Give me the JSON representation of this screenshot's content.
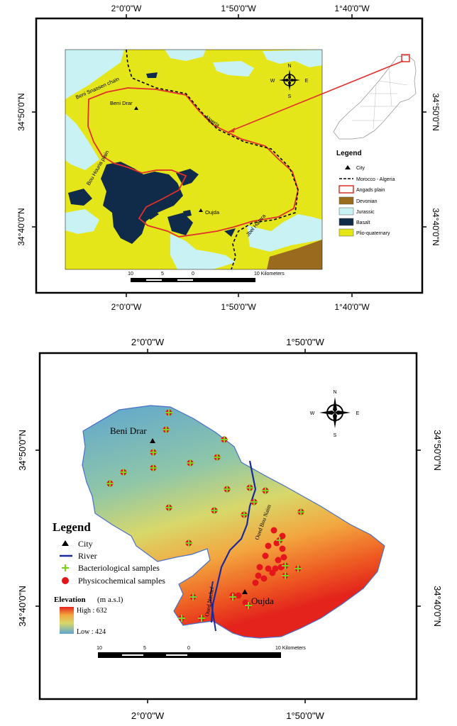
{
  "map1": {
    "top_ticks": [
      "2°0'0\"W",
      "1°50'0\"W",
      "1°40'0\"W"
    ],
    "bottom_ticks": [
      "2°0'0\"W",
      "1°50'0\"W",
      "1°40'0\"W"
    ],
    "left_ticks": [
      "34°50'0\"N",
      "34°40'0\"N"
    ],
    "right_ticks": [
      "34°50'0\"N",
      "34°40'0\"N"
    ],
    "labels": {
      "beni_snassen": "Beni Snassen chain",
      "beni_drar": "Beni Drar",
      "algeria": "Algeria",
      "bou_houria": "Bou Houria plain",
      "oujda": "Oujda",
      "jbel_hamra": "Jbel Hamra"
    },
    "legend": {
      "title": "Legend",
      "items": [
        {
          "label": "City",
          "symbol": "triangle"
        },
        {
          "label": "Morocco - Algeria",
          "symbol": "dashed-line"
        },
        {
          "label": "Angads plain",
          "symbol": "red-outline",
          "color": "#e0302b"
        },
        {
          "label": "Devonian",
          "symbol": "fill",
          "color": "#9a6a1e"
        },
        {
          "label": "Jurassic",
          "symbol": "fill",
          "color": "#c9f2f4"
        },
        {
          "label": "Basalt",
          "symbol": "fill",
          "color": "#102a4a"
        },
        {
          "label": "Plio-quaternary",
          "symbol": "fill",
          "color": "#e5e619"
        }
      ]
    },
    "compass": {
      "n": "N",
      "s": "S",
      "e": "E",
      "w": "W"
    },
    "scale": [
      "10",
      "5",
      "0",
      "10 Kilometers"
    ]
  },
  "map2": {
    "top_ticks": [
      "2°0'0\"W",
      "1°50'0\"W"
    ],
    "bottom_ticks": [
      "2°0'0\"W",
      "1°50'0\"W"
    ],
    "left_ticks": [
      "34°50'0\"N",
      "34°40'0\"N"
    ],
    "right_ticks": [
      "34°50'0\"N",
      "34°40'0\"N"
    ],
    "labels": {
      "beni_drar": "Beni Drar",
      "oujda": "Oujda",
      "oued_bou_naim": "Oued Bou Naim",
      "oued_nachef": "Oued Nachef"
    },
    "legend": {
      "title": "Legend",
      "items": [
        {
          "label": "City",
          "symbol": "triangle"
        },
        {
          "label": "River",
          "symbol": "line",
          "color": "#1a2a9a"
        },
        {
          "label": "Bacteriological samples",
          "symbol": "plus",
          "color": "#7dd321"
        },
        {
          "label": "Physicochemical samples",
          "symbol": "dot",
          "color": "#e5161b"
        }
      ],
      "elevation_title": "Elevation",
      "elevation_unit": "(m a.s.l)",
      "high": "High : 632",
      "low": "Low : 424"
    },
    "compass": {
      "n": "N",
      "s": "S",
      "e": "E",
      "w": "W"
    },
    "scale": [
      "10",
      "5",
      "0",
      "10 Kilometers"
    ]
  }
}
